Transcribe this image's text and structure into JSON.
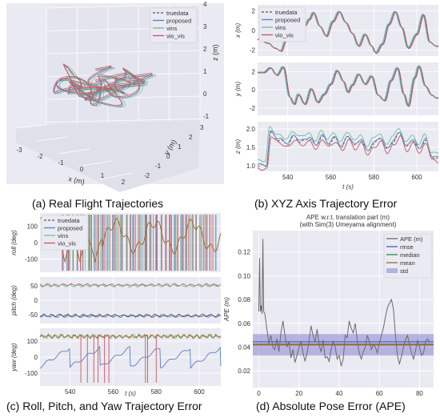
{
  "legend_labels": [
    "truedata",
    "proposed",
    "vins",
    "vio_vis"
  ],
  "colors": {
    "truedata": "#555555",
    "proposed": "#5a7fc2",
    "vins": "#6cbf93",
    "vio_vis": "#c8535b",
    "bg": "#eaeaf2",
    "grid": "#ffffff",
    "mean": "#a36a2c",
    "median": "#2e8b57",
    "std": "#8a84d0"
  },
  "captions": {
    "a": "(a) Real Flight Trajectories",
    "b": "(b) XYZ Axis Trajectory Error",
    "c": "(c) Roll, Pitch, and Yaw Trajectory Error",
    "d": "(d) Absolute Pose Error (APE)"
  },
  "chart_data": [
    {
      "type": "line3d",
      "panel": "a",
      "xlabel": "x (m)",
      "ylabel": "y (m)",
      "zlabel": "z (m)",
      "x_ticks": [
        "-3",
        "-2",
        "-1",
        "0",
        "1",
        "2"
      ],
      "y_ticks": [
        "-2",
        "-1",
        "0",
        "1",
        "2",
        "3"
      ],
      "z_ticks": [
        "-1",
        "0",
        "1",
        "2",
        "3",
        "4"
      ],
      "series": [
        {
          "name": "truedata"
        },
        {
          "name": "proposed"
        },
        {
          "name": "vins"
        },
        {
          "name": "vio_vis"
        }
      ]
    },
    {
      "type": "line",
      "panel": "b",
      "xlabel": "t (s)",
      "x_ticks": [
        "540",
        "560",
        "580",
        "600"
      ],
      "xlim": [
        526,
        610
      ],
      "subplots": [
        {
          "ylabel": "x (m)",
          "y_ticks": [
            "2",
            "0",
            "-2"
          ],
          "ylim": [
            -2.6,
            2.6
          ],
          "keys": [
            [
              526,
              -0.9
            ],
            [
              531,
              -1.3
            ],
            [
              534,
              -1.8
            ],
            [
              537,
              -2.1
            ],
            [
              539,
              -1.1
            ],
            [
              540,
              0.9
            ],
            [
              542,
              0.2
            ],
            [
              545,
              1.9
            ],
            [
              548,
              0.5
            ],
            [
              550,
              1.1
            ],
            [
              552,
              1.8
            ],
            [
              555,
              0.4
            ],
            [
              558,
              -0.6
            ],
            [
              561,
              0.9
            ],
            [
              564,
              1.9
            ],
            [
              567,
              0.8
            ],
            [
              570,
              -0.3
            ],
            [
              573,
              -1.6
            ],
            [
              576,
              -0.4
            ],
            [
              579,
              -1.6
            ],
            [
              581,
              -2.3
            ],
            [
              584,
              -1.4
            ],
            [
              587,
              0.6
            ],
            [
              590,
              1.9
            ],
            [
              593,
              0.3
            ],
            [
              596,
              -1.8
            ],
            [
              600,
              -0.4
            ],
            [
              603,
              1.6
            ],
            [
              606,
              -1.2
            ],
            [
              609,
              -1.6
            ]
          ]
        },
        {
          "ylabel": "y (m)",
          "y_ticks": [
            "2",
            "0",
            "-2"
          ],
          "ylim": [
            -2.8,
            3.0
          ],
          "keys": [
            [
              526,
              1.9
            ],
            [
              529,
              1.9
            ],
            [
              532,
              2.4
            ],
            [
              535,
              1.6
            ],
            [
              538,
              2.5
            ],
            [
              541,
              -0.8
            ],
            [
              543,
              -1.6
            ],
            [
              545,
              -0.5
            ],
            [
              548,
              -1.6
            ],
            [
              551,
              0.1
            ],
            [
              554,
              -1.4
            ],
            [
              557,
              -0.5
            ],
            [
              560,
              0.6
            ],
            [
              563,
              2.1
            ],
            [
              566,
              0.9
            ],
            [
              568,
              -0.3
            ],
            [
              570,
              0.5
            ],
            [
              573,
              1.7
            ],
            [
              576,
              0.6
            ],
            [
              579,
              1.5
            ],
            [
              582,
              -0.6
            ],
            [
              585,
              -1.2
            ],
            [
              588,
              1.0
            ],
            [
              591,
              2.4
            ],
            [
              594,
              -0.5
            ],
            [
              596,
              -1.8
            ],
            [
              599,
              1.3
            ],
            [
              601,
              2.6
            ],
            [
              604,
              0.4
            ],
            [
              607,
              -0.6
            ],
            [
              609,
              -0.9
            ]
          ]
        },
        {
          "ylabel": "z (m)",
          "y_ticks": [
            "2.0",
            "1.5",
            "1.0"
          ],
          "ylim": [
            0.85,
            2.2
          ],
          "keys": [
            [
              526,
              1.0
            ],
            [
              530,
              1.0
            ],
            [
              532,
              1.9
            ],
            [
              536,
              1.7
            ],
            [
              540,
              1.6
            ],
            [
              543,
              1.8
            ],
            [
              546,
              1.65
            ],
            [
              550,
              1.75
            ],
            [
              553,
              1.55
            ],
            [
              556,
              1.8
            ],
            [
              559,
              1.6
            ],
            [
              562,
              1.75
            ],
            [
              565,
              1.5
            ],
            [
              568,
              1.8
            ],
            [
              571,
              1.55
            ],
            [
              574,
              1.7
            ],
            [
              577,
              1.4
            ],
            [
              580,
              1.6
            ],
            [
              583,
              1.75
            ],
            [
              586,
              1.45
            ],
            [
              589,
              1.65
            ],
            [
              592,
              1.9
            ],
            [
              595,
              1.5
            ],
            [
              598,
              1.7
            ],
            [
              601,
              1.45
            ],
            [
              604,
              1.7
            ],
            [
              607,
              1.25
            ],
            [
              609,
              1.2
            ]
          ]
        }
      ],
      "series": [
        {
          "name": "truedata"
        },
        {
          "name": "proposed"
        },
        {
          "name": "vins"
        },
        {
          "name": "vio_vis"
        }
      ]
    },
    {
      "type": "line",
      "panel": "c",
      "xlabel": "t (s)",
      "x_ticks": [
        "540",
        "560",
        "580",
        "600"
      ],
      "xlim": [
        526,
        610
      ],
      "subplots": [
        {
          "ylabel": "roll (deg)",
          "y_ticks": [
            "100",
            "0",
            "-100"
          ],
          "ylim": [
            -180,
            180
          ]
        },
        {
          "ylabel": "pitch (deg)",
          "y_ticks": [
            "50",
            "0",
            "-50"
          ],
          "ylim": [
            -80,
            80
          ],
          "levels": {
            "upper": 53,
            "lower": -55
          }
        },
        {
          "ylabel": "yaw (deg)",
          "y_ticks": [
            "100",
            "0",
            "-100"
          ],
          "ylim": [
            -180,
            180
          ],
          "levels": {
            "upper": 130
          }
        }
      ],
      "series": [
        {
          "name": "truedata"
        },
        {
          "name": "proposed"
        },
        {
          "name": "vins"
        },
        {
          "name": "vio_vis"
        }
      ]
    },
    {
      "type": "line",
      "panel": "d",
      "title": "APE w.r.t. translation part (m)",
      "subtitle": "(with Sim(3) Umeyama alignment)",
      "xlabel": "",
      "ylabel": "APE (m)",
      "x_ticks": [
        "0",
        "20",
        "40",
        "60",
        "80"
      ],
      "y_ticks": [
        "0.12",
        "0.10",
        "0.08",
        "0.06",
        "0.04",
        "0.02"
      ],
      "xlim": [
        -3,
        87
      ],
      "ylim": [
        0.006,
        0.138
      ],
      "legend": [
        "APE (m)",
        "rmse",
        "median",
        "mean",
        "std"
      ],
      "stats": {
        "rmse": 0.0445,
        "median": 0.0425,
        "mean": 0.042,
        "std_low": 0.033,
        "std_high": 0.051
      },
      "values": [
        [
          0,
          0.07
        ],
        [
          0.4,
          0.115
        ],
        [
          0.8,
          0.07
        ],
        [
          1.2,
          0.075
        ],
        [
          1.6,
          0.068
        ],
        [
          2.0,
          0.131
        ],
        [
          2.4,
          0.07
        ],
        [
          3,
          0.068
        ],
        [
          4,
          0.055
        ],
        [
          5,
          0.043
        ],
        [
          6,
          0.05
        ],
        [
          7,
          0.04
        ],
        [
          8,
          0.038
        ],
        [
          9,
          0.047
        ],
        [
          10,
          0.036
        ],
        [
          11,
          0.052
        ],
        [
          12,
          0.062
        ],
        [
          13,
          0.05
        ],
        [
          14,
          0.04
        ],
        [
          15,
          0.045
        ],
        [
          16,
          0.031
        ],
        [
          17,
          0.038
        ],
        [
          18,
          0.027
        ],
        [
          19,
          0.033
        ],
        [
          20,
          0.04
        ],
        [
          21,
          0.045
        ],
        [
          22,
          0.035
        ],
        [
          23,
          0.028
        ],
        [
          24,
          0.035
        ],
        [
          25,
          0.045
        ],
        [
          26,
          0.058
        ],
        [
          27,
          0.05
        ],
        [
          28,
          0.044
        ],
        [
          29,
          0.055
        ],
        [
          30,
          0.042
        ],
        [
          31,
          0.036
        ],
        [
          32,
          0.046
        ],
        [
          33,
          0.031
        ],
        [
          34,
          0.032
        ],
        [
          35,
          0.028
        ],
        [
          36,
          0.038
        ],
        [
          37,
          0.045
        ],
        [
          38,
          0.04
        ],
        [
          39,
          0.03
        ],
        [
          40,
          0.033
        ],
        [
          41,
          0.024
        ],
        [
          42,
          0.03
        ],
        [
          43,
          0.05
        ],
        [
          44,
          0.048
        ],
        [
          45,
          0.062
        ],
        [
          46,
          0.056
        ],
        [
          47,
          0.052
        ],
        [
          48,
          0.06
        ],
        [
          49,
          0.045
        ],
        [
          50,
          0.035
        ],
        [
          51,
          0.03
        ],
        [
          52,
          0.036
        ],
        [
          53,
          0.04
        ],
        [
          54,
          0.05
        ],
        [
          55,
          0.045
        ],
        [
          56,
          0.038
        ],
        [
          57,
          0.042
        ],
        [
          58,
          0.04
        ],
        [
          59,
          0.035
        ],
        [
          60,
          0.043
        ],
        [
          61,
          0.05
        ],
        [
          62,
          0.056
        ],
        [
          63,
          0.065
        ],
        [
          64,
          0.073
        ],
        [
          65,
          0.077
        ],
        [
          66,
          0.08
        ],
        [
          67,
          0.072
        ],
        [
          68,
          0.05
        ],
        [
          69,
          0.033
        ],
        [
          70,
          0.026
        ],
        [
          71,
          0.032
        ],
        [
          72,
          0.04
        ],
        [
          73,
          0.046
        ],
        [
          74,
          0.05
        ],
        [
          75,
          0.042
        ],
        [
          76,
          0.035
        ],
        [
          77,
          0.03
        ],
        [
          78,
          0.037
        ],
        [
          79,
          0.046
        ],
        [
          80,
          0.04
        ],
        [
          81,
          0.033
        ],
        [
          82,
          0.035
        ],
        [
          83,
          0.045
        ],
        [
          84,
          0.047
        ],
        [
          85,
          0.044
        ]
      ]
    }
  ]
}
